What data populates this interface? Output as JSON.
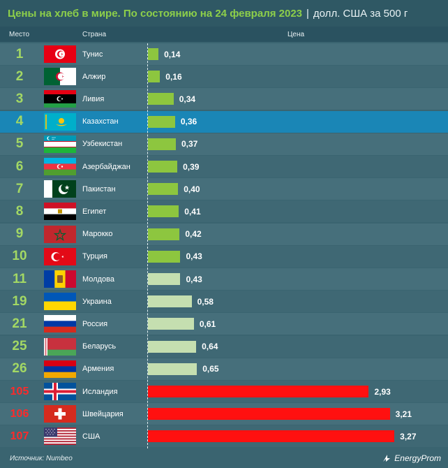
{
  "title": {
    "main": "Цены на хлеб в мире. По состоянию на 24 февраля 2023",
    "separator": "|",
    "unit": "долл. США за 500 г"
  },
  "headers": {
    "rank": "Место",
    "country": "Страна",
    "price": "Цена"
  },
  "colors": {
    "top_rank_green": "#a3d864",
    "bottom_rank_red": "#ff2a2a",
    "bar_green": "#8dc63f",
    "bar_light": "#c5dfb0",
    "bar_red": "#ff1010",
    "highlight_row": "#1a86b6"
  },
  "chart_data": {
    "type": "bar",
    "orientation": "horizontal",
    "title": "Цены на хлеб в мире. По состоянию на 24 февраля 2023",
    "unit": "долл. США за 500 г",
    "rows": [
      {
        "rank": "1",
        "country": "Тунис",
        "flag": "tunisia-flag",
        "value": 0.14,
        "value_label": "0,14",
        "style": "green"
      },
      {
        "rank": "2",
        "country": "Алжир",
        "flag": "algeria-flag",
        "value": 0.16,
        "value_label": "0,16",
        "style": "green"
      },
      {
        "rank": "3",
        "country": "Ливия",
        "flag": "libya-flag",
        "value": 0.34,
        "value_label": "0,34",
        "style": "green"
      },
      {
        "rank": "4",
        "country": "Казахстан",
        "flag": "kazakhstan-flag",
        "value": 0.36,
        "value_label": "0,36",
        "style": "green",
        "highlight": true
      },
      {
        "rank": "5",
        "country": "Узбекистан",
        "flag": "uzbekistan-flag",
        "value": 0.37,
        "value_label": "0,37",
        "style": "green"
      },
      {
        "rank": "6",
        "country": "Азербайджан",
        "flag": "azerbaijan-flag",
        "value": 0.39,
        "value_label": "0,39",
        "style": "green"
      },
      {
        "rank": "7",
        "country": "Пакистан",
        "flag": "pakistan-flag",
        "value": 0.4,
        "value_label": "0,40",
        "style": "green"
      },
      {
        "rank": "8",
        "country": "Египет",
        "flag": "egypt-flag",
        "value": 0.41,
        "value_label": "0,41",
        "style": "green"
      },
      {
        "rank": "9",
        "country": "Марокко",
        "flag": "morocco-flag",
        "value": 0.42,
        "value_label": "0,42",
        "style": "green"
      },
      {
        "rank": "10",
        "country": "Турция",
        "flag": "turkey-flag",
        "value": 0.43,
        "value_label": "0,43",
        "style": "green"
      },
      {
        "rank": "11",
        "country": "Молдова",
        "flag": "moldova-flag",
        "value": 0.43,
        "value_label": "0,43",
        "style": "light"
      },
      {
        "rank": "19",
        "country": "Украина",
        "flag": "ukraine-flag",
        "value": 0.58,
        "value_label": "0,58",
        "style": "light"
      },
      {
        "rank": "21",
        "country": "Россия",
        "flag": "russia-flag",
        "value": 0.61,
        "value_label": "0,61",
        "style": "light"
      },
      {
        "rank": "25",
        "country": "Беларусь",
        "flag": "belarus-flag",
        "value": 0.64,
        "value_label": "0,64",
        "style": "light"
      },
      {
        "rank": "26",
        "country": "Армения",
        "flag": "armenia-flag",
        "value": 0.65,
        "value_label": "0,65",
        "style": "light"
      },
      {
        "rank": "105",
        "country": "Исландия",
        "flag": "iceland-flag",
        "value": 2.93,
        "value_label": "2,93",
        "style": "red"
      },
      {
        "rank": "106",
        "country": "Швейцария",
        "flag": "switzerland-flag",
        "value": 3.21,
        "value_label": "3,21",
        "style": "red"
      },
      {
        "rank": "107",
        "country": "США",
        "flag": "usa-flag",
        "value": 3.27,
        "value_label": "3,27",
        "style": "red"
      }
    ],
    "xlim": [
      0,
      3.5
    ]
  },
  "footer": {
    "source": "Источник: Numbeo",
    "logo": "EnergyProm"
  }
}
